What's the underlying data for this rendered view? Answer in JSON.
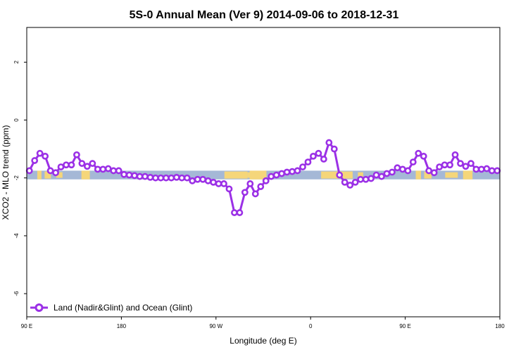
{
  "chart_data": {
    "type": "line",
    "title": "5S-0 Annual Mean (Ver 9)   2014-09-06 to 2018-12-31",
    "xlabel": "Longitude (deg E)",
    "ylabel": "XCO2 - MLO trend (ppm)",
    "x_ticks": [
      {
        "value": 90,
        "label": "90 E"
      },
      {
        "value": 180,
        "label": "180"
      },
      {
        "value": 270,
        "label": "90 W"
      },
      {
        "value": 360,
        "label": "0"
      },
      {
        "value": 450,
        "label": "90 E"
      },
      {
        "value": 540,
        "label": "180"
      }
    ],
    "y_ticks": [
      {
        "value": 2,
        "label": "2"
      },
      {
        "value": 0,
        "label": "0"
      },
      {
        "value": -2,
        "label": "-2"
      },
      {
        "value": -4,
        "label": "-4"
      },
      {
        "value": -6,
        "label": "-6"
      }
    ],
    "xlim": [
      90,
      540
    ],
    "ylim": [
      -6.8,
      3.2
    ],
    "grid": false,
    "legend_position": "bottom-left",
    "map_strip": {
      "ymin": -2.05,
      "ymax": -1.75,
      "ocean_color": "#a5b8d6",
      "land_color": "#f5d67a",
      "land_ranges": [
        [
          100,
          104
        ],
        [
          107,
          113
        ],
        [
          118,
          124
        ],
        [
          142,
          150
        ],
        [
          278,
          300
        ],
        [
          300,
          312
        ],
        [
          302,
          318
        ],
        [
          370,
          400
        ],
        [
          405,
          410
        ],
        [
          460,
          465
        ],
        [
          468,
          475
        ],
        [
          488,
          500
        ],
        [
          505,
          514
        ]
      ]
    },
    "series": [
      {
        "name": "Land (Nadir&Glint) and Ocean (Glint)",
        "color": "#9b30e6",
        "x": [
          92.5,
          97.5,
          102.5,
          107.5,
          112.5,
          117.5,
          122.5,
          127.5,
          132.5,
          137.5,
          142.5,
          147.5,
          152.5,
          157.5,
          162.5,
          167.5,
          172.5,
          177.5,
          182.5,
          187.5,
          192.5,
          197.5,
          202.5,
          207.5,
          212.5,
          217.5,
          222.5,
          227.5,
          232.5,
          237.5,
          242.5,
          247.5,
          252.5,
          257.5,
          262.5,
          267.5,
          272.5,
          277.5,
          282.5,
          287.5,
          292.5,
          297.5,
          302.5,
          307.5,
          312.5,
          317.5,
          322.5,
          327.5,
          332.5,
          337.5,
          342.5,
          347.5,
          352.5,
          357.5,
          362.5,
          367.5,
          372.5,
          377.5,
          382.5,
          387.5,
          392.5,
          397.5,
          402.5,
          407.5,
          412.5,
          417.5,
          422.5,
          427.5,
          432.5,
          437.5,
          442.5,
          447.5,
          452.5,
          457.5,
          462.5,
          467.5,
          472.5,
          477.5,
          482.5,
          487.5,
          492.5,
          497.5,
          502.5,
          507.5,
          512.5,
          517.5,
          522.5,
          527.5,
          532.5,
          537.5
        ],
        "y": [
          -1.75,
          -1.4,
          -1.15,
          -1.25,
          -1.75,
          -1.82,
          -1.62,
          -1.55,
          -1.55,
          -1.2,
          -1.5,
          -1.6,
          -1.5,
          -1.7,
          -1.7,
          -1.68,
          -1.75,
          -1.75,
          -1.88,
          -1.9,
          -1.92,
          -1.95,
          -1.95,
          -1.98,
          -2.0,
          -2.0,
          -2.0,
          -2.0,
          -1.98,
          -2.0,
          -2.0,
          -2.1,
          -2.05,
          -2.05,
          -2.1,
          -2.15,
          -2.2,
          -2.2,
          -2.38,
          -3.2,
          -3.2,
          -2.5,
          -2.2,
          -2.55,
          -2.3,
          -2.1,
          -1.95,
          -1.9,
          -1.85,
          -1.8,
          -1.78,
          -1.75,
          -1.62,
          -1.45,
          -1.25,
          -1.15,
          -1.35,
          -0.78,
          -1.0,
          -1.9,
          -2.15,
          -2.25,
          -2.15,
          -2.05,
          -2.05,
          -2.02,
          -1.9,
          -1.95,
          -1.85,
          -1.8,
          -1.65,
          -1.7,
          -1.75,
          -1.45,
          -1.15,
          -1.25,
          -1.75,
          -1.82,
          -1.62,
          -1.55,
          -1.55,
          -1.2,
          -1.5,
          -1.6,
          -1.5,
          -1.7,
          -1.7,
          -1.68,
          -1.75,
          -1.75
        ]
      }
    ]
  }
}
